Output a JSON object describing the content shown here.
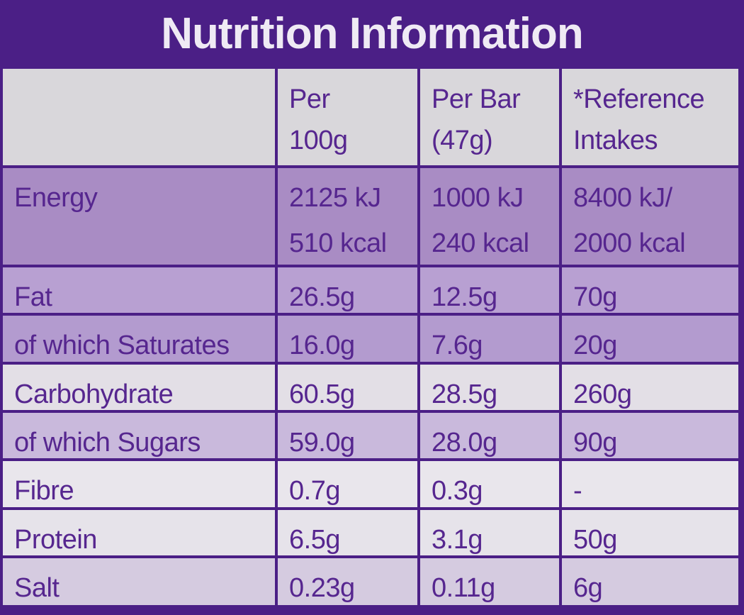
{
  "title": "Nutrition Information",
  "table": {
    "columns": [
      [
        "Per",
        "100g"
      ],
      [
        "Per Bar",
        "(47g)"
      ],
      [
        "*Reference",
        "Intakes"
      ]
    ],
    "rows": [
      {
        "label": "Energy",
        "cells": [
          [
            "2125 kJ",
            "510 kcal"
          ],
          [
            "1000 kJ",
            "240 kcal"
          ],
          [
            "8400 kJ/",
            "2000 kcal"
          ]
        ]
      },
      {
        "label": "Fat",
        "cells": [
          [
            "26.5g"
          ],
          [
            "12.5g"
          ],
          [
            "70g"
          ]
        ]
      },
      {
        "label": "of which Saturates",
        "cells": [
          [
            "16.0g"
          ],
          [
            "7.6g"
          ],
          [
            "20g"
          ]
        ]
      },
      {
        "label": "Carbohydrate",
        "cells": [
          [
            "60.5g"
          ],
          [
            "28.5g"
          ],
          [
            "260g"
          ]
        ]
      },
      {
        "label": "of which Sugars",
        "cells": [
          [
            "59.0g"
          ],
          [
            "28.0g"
          ],
          [
            "90g"
          ]
        ]
      },
      {
        "label": "Fibre",
        "cells": [
          [
            "0.7g"
          ],
          [
            "0.3g"
          ],
          [
            "-"
          ]
        ]
      },
      {
        "label": "Protein",
        "cells": [
          [
            "6.5g"
          ],
          [
            "3.1g"
          ],
          [
            "50g"
          ]
        ]
      },
      {
        "label": "Salt",
        "cells": [
          [
            "0.23g"
          ],
          [
            "0.11g"
          ],
          [
            "6g"
          ]
        ]
      }
    ]
  }
}
